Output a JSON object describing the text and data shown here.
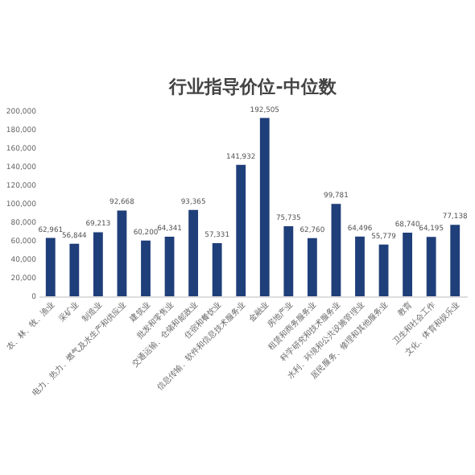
{
  "chart_data": {
    "type": "bar",
    "title": "行业指导价位-中位数",
    "categories": [
      "农、林、牧、渔业",
      "采矿业",
      "制造业",
      "电力、热力、燃气及水生产和供应业",
      "建筑业",
      "批发和零售业",
      "交通运输、仓储和邮政业",
      "住宿和餐饮业",
      "信息传输、软件和信息技术服务业",
      "金融业",
      "房地产业",
      "租赁和商务服务业",
      "科学研究和技术服务业",
      "水利、环境和公共设施管理业",
      "居民服务、修理和其他服务业",
      "教育",
      "卫生和社会工作",
      "文化、体育和娱乐业"
    ],
    "values": [
      62961,
      56844,
      69213,
      92668,
      60200,
      64341,
      93365,
      57331,
      141932,
      192505,
      75735,
      62760,
      99781,
      64496,
      55779,
      68740,
      64195,
      77138
    ],
    "value_labels": [
      "62,961",
      "56,844",
      "69,213",
      "92,668",
      "60,200",
      "64,341",
      "93,365",
      "57,331",
      "141,932",
      "192,505",
      "75,735",
      "62,760",
      "99,781",
      "64,496",
      "55,779",
      "68,740",
      "64,195",
      "77,138"
    ],
    "color": "#1f3f7a",
    "ylim": [
      0,
      200000
    ],
    "yticks": [
      0,
      {
        "value": 20000,
        "label": "20,000"
      },
      {
        "value": 40000,
        "label": "40,000"
      },
      {
        "value": 60000,
        "label": "60,000"
      },
      {
        "value": 80000,
        "label": "80,000"
      },
      {
        "value": 100000,
        "label": "100,000"
      },
      {
        "value": 120000,
        "label": "120,000"
      },
      {
        "value": 140000,
        "label": "140,000"
      },
      {
        "value": 160000,
        "label": "160,000"
      },
      {
        "value": 180000,
        "label": "180,000"
      },
      {
        "value": 200000,
        "label": "200,000"
      }
    ],
    "grid": false
  }
}
